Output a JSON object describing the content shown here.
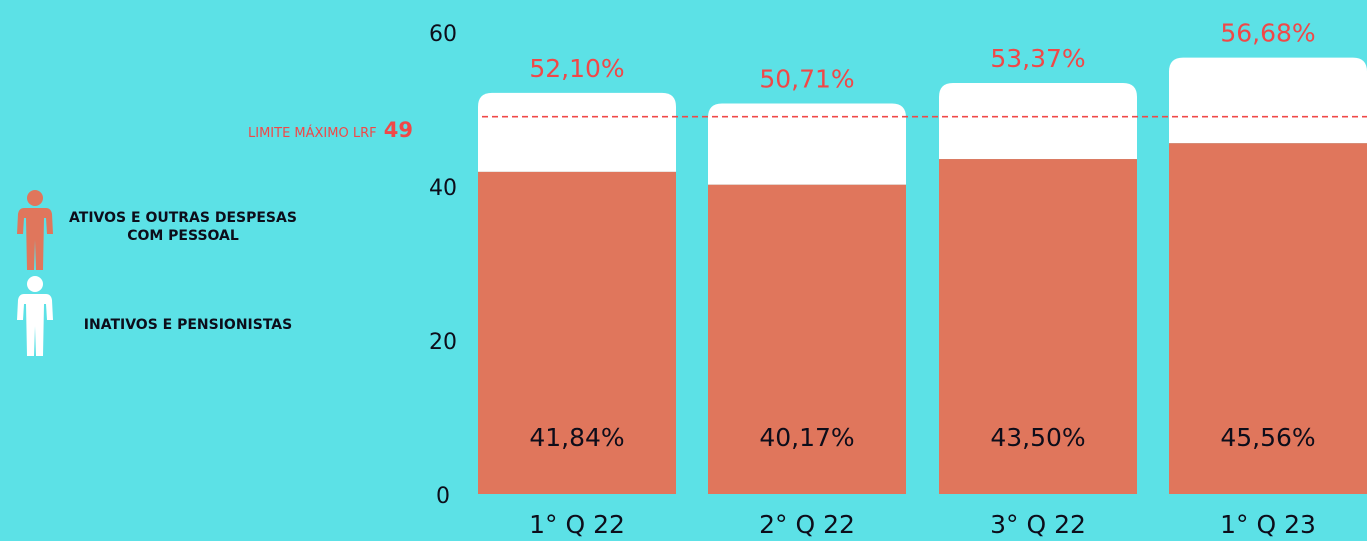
{
  "colors": {
    "background": "#5ce1e6",
    "ativos": "#e0765c",
    "inativos": "#ffffff",
    "limit": "#f04848",
    "text": "#0d0d1a"
  },
  "legend": [
    {
      "label": "ATIVOS E OUTRAS DESPESAS COM PESSOAL",
      "icon": "person-icon"
    },
    {
      "label": "INATIVOS E PENSIONISTAS",
      "icon": "person-icon"
    }
  ],
  "limit": {
    "label": "LIMITE MÁXIMO LRF",
    "value": 49,
    "value_label": "49"
  },
  "chart_data": {
    "type": "bar",
    "stacked": true,
    "categories": [
      "1° Q 22",
      "2° Q 22",
      "3° Q 22",
      "1° Q 23"
    ],
    "series": [
      {
        "name": "ATIVOS E OUTRAS DESPESAS COM PESSOAL",
        "values": [
          41.84,
          40.17,
          43.5,
          45.56
        ],
        "labels": [
          "41,84%",
          "40,17%",
          "43,50%",
          "45,56%"
        ]
      },
      {
        "name": "INATIVOS E PENSIONISTAS",
        "values": [
          10.26,
          10.54,
          9.87,
          11.12
        ]
      }
    ],
    "totals": [
      52.1,
      50.71,
      53.37,
      56.68
    ],
    "total_labels": [
      "52,10%",
      "50,71%",
      "53,37%",
      "56,68%"
    ],
    "yticks": [
      0,
      20,
      40,
      60
    ],
    "ylim": [
      0,
      60
    ],
    "grid": false,
    "legend_position": "left"
  }
}
